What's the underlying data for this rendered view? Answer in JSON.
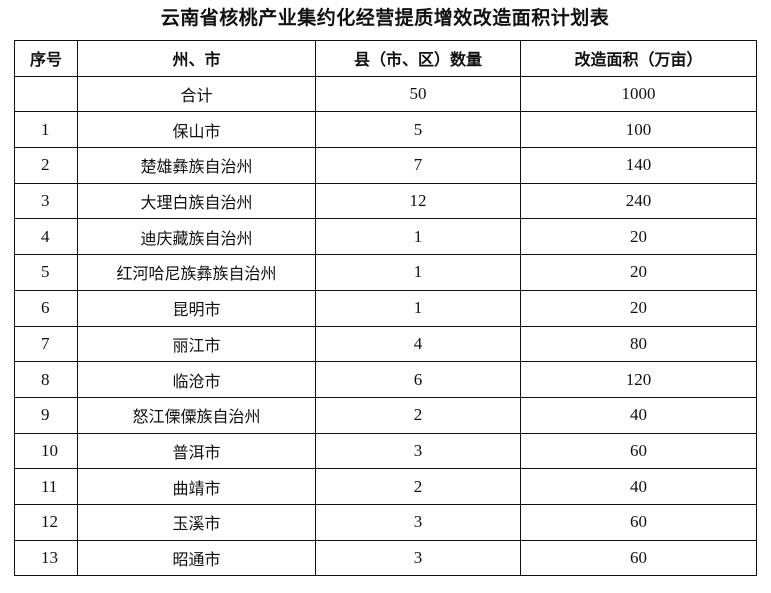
{
  "title": "云南省核桃产业集约化经营提质增效改造面积计划表",
  "headers": [
    "序号",
    "州、市",
    "县（市、区）数量",
    "改造面积（万亩）"
  ],
  "total": {
    "no": "",
    "name": "合计",
    "count": "50",
    "area": "1000"
  },
  "rows": [
    {
      "no": "1",
      "name": "保山市",
      "count": "5",
      "area": "100"
    },
    {
      "no": "2",
      "name": "楚雄彝族自治州",
      "count": "7",
      "area": "140"
    },
    {
      "no": "3",
      "name": "大理白族自治州",
      "count": "12",
      "area": "240"
    },
    {
      "no": "4",
      "name": "迪庆藏族自治州",
      "count": "1",
      "area": "20"
    },
    {
      "no": "5",
      "name": "红河哈尼族彝族自治州",
      "count": "1",
      "area": "20"
    },
    {
      "no": "6",
      "name": "昆明市",
      "count": "1",
      "area": "20"
    },
    {
      "no": "7",
      "name": "丽江市",
      "count": "4",
      "area": "80"
    },
    {
      "no": "8",
      "name": "临沧市",
      "count": "6",
      "area": "120"
    },
    {
      "no": "9",
      "name": "怒江傈僳族自治州",
      "count": "2",
      "area": "40"
    },
    {
      "no": "10",
      "name": "普洱市",
      "count": "3",
      "area": "60"
    },
    {
      "no": "11",
      "name": "曲靖市",
      "count": "2",
      "area": "40"
    },
    {
      "no": "12",
      "name": "玉溪市",
      "count": "3",
      "area": "60"
    },
    {
      "no": "13",
      "name": "昭通市",
      "count": "3",
      "area": "60"
    }
  ]
}
